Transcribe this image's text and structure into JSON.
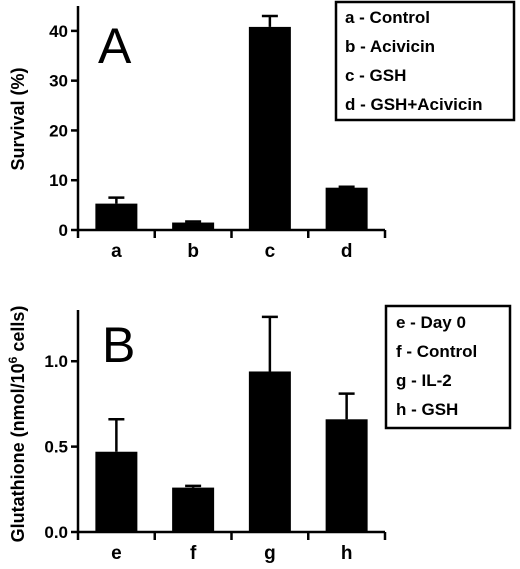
{
  "chart_data": [
    {
      "type": "bar",
      "panel_label": "A",
      "categories": [
        "a",
        "b",
        "c",
        "d"
      ],
      "values": [
        5.3,
        1.5,
        40.8,
        8.5
      ],
      "errors": [
        1.2,
        0.2,
        2.2,
        0.2
      ],
      "ylabel": "Survival (%)",
      "ylim": [
        0,
        45
      ],
      "yticks": [
        0,
        10,
        20,
        30,
        40
      ],
      "ytick_labels": [
        "0",
        "10",
        "20",
        "30",
        "40"
      ],
      "legend": [
        "a - Control",
        "b - Acivicin",
        "c - GSH",
        "d - GSH+Acivicin"
      ],
      "legend_position": "top-right",
      "bar_color": "#000000"
    },
    {
      "type": "bar",
      "panel_label": "B",
      "categories": [
        "e",
        "f",
        "g",
        "h"
      ],
      "values": [
        0.47,
        0.26,
        0.94,
        0.66
      ],
      "errors": [
        0.19,
        0.01,
        0.32,
        0.15
      ],
      "ylabel_prefix": "Glutathione (nmol/10",
      "ylabel_sup": "6",
      "ylabel_suffix": " cells)",
      "ylim": [
        0,
        1.3
      ],
      "yticks": [
        0,
        0.5,
        1.0
      ],
      "ytick_labels": [
        "0.0",
        "0.5",
        "1.0"
      ],
      "legend": [
        "e - Day 0",
        "f - Control",
        "g - IL-2",
        "h - GSH"
      ],
      "legend_position": "top-right",
      "bar_color": "#000000"
    }
  ]
}
